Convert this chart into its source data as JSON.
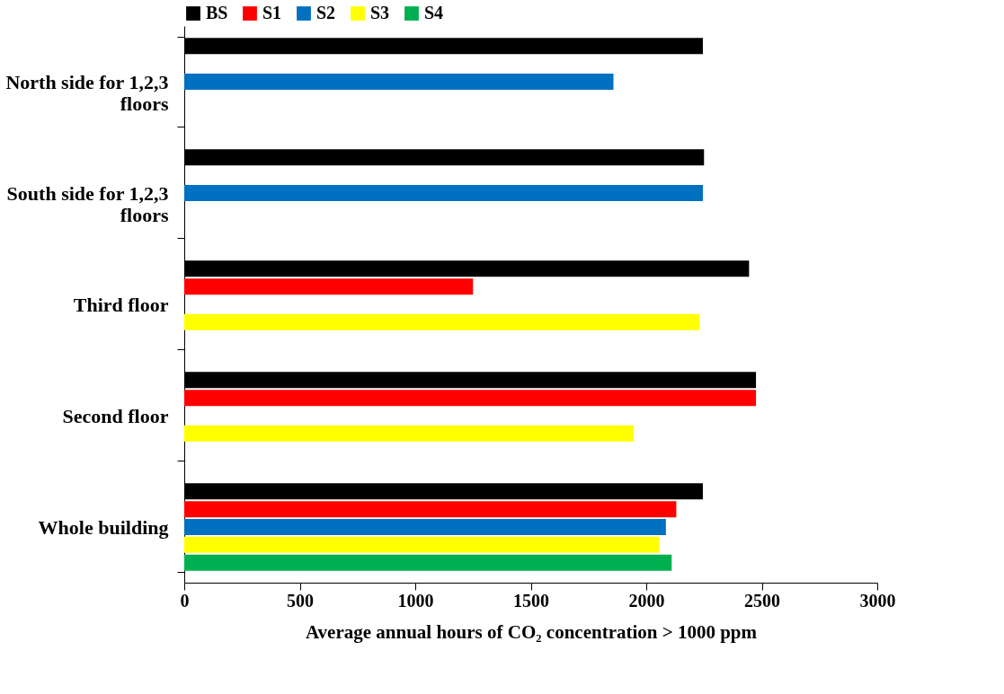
{
  "chart_data": {
    "type": "bar",
    "orientation": "horizontal",
    "xlabel": "Average annual hours of CO₂ concentration > 1000 ppm",
    "categories": [
      "North side for 1,2,3 floors",
      "South side for 1,2,3 floors",
      "Third floor",
      "Second floor",
      "Whole building"
    ],
    "series": [
      {
        "name": "BS",
        "color": "#000000",
        "values": [
          2245,
          2250,
          2445,
          2475,
          2245
        ]
      },
      {
        "name": "S1",
        "color": "#ff0000",
        "values": [
          null,
          null,
          1250,
          2475,
          2130
        ]
      },
      {
        "name": "S2",
        "color": "#0070c0",
        "values": [
          1858,
          2245,
          null,
          null,
          2085
        ]
      },
      {
        "name": "S3",
        "color": "#ffff00",
        "values": [
          null,
          null,
          2230,
          1945,
          2055
        ]
      },
      {
        "name": "S4",
        "color": "#00b050",
        "values": [
          null,
          null,
          null,
          null,
          2110
        ]
      }
    ],
    "xlim": [
      0,
      3000
    ],
    "xticks": [
      0,
      500,
      1000,
      1500,
      2000,
      2500,
      3000
    ],
    "grid": false,
    "legend": "top"
  }
}
